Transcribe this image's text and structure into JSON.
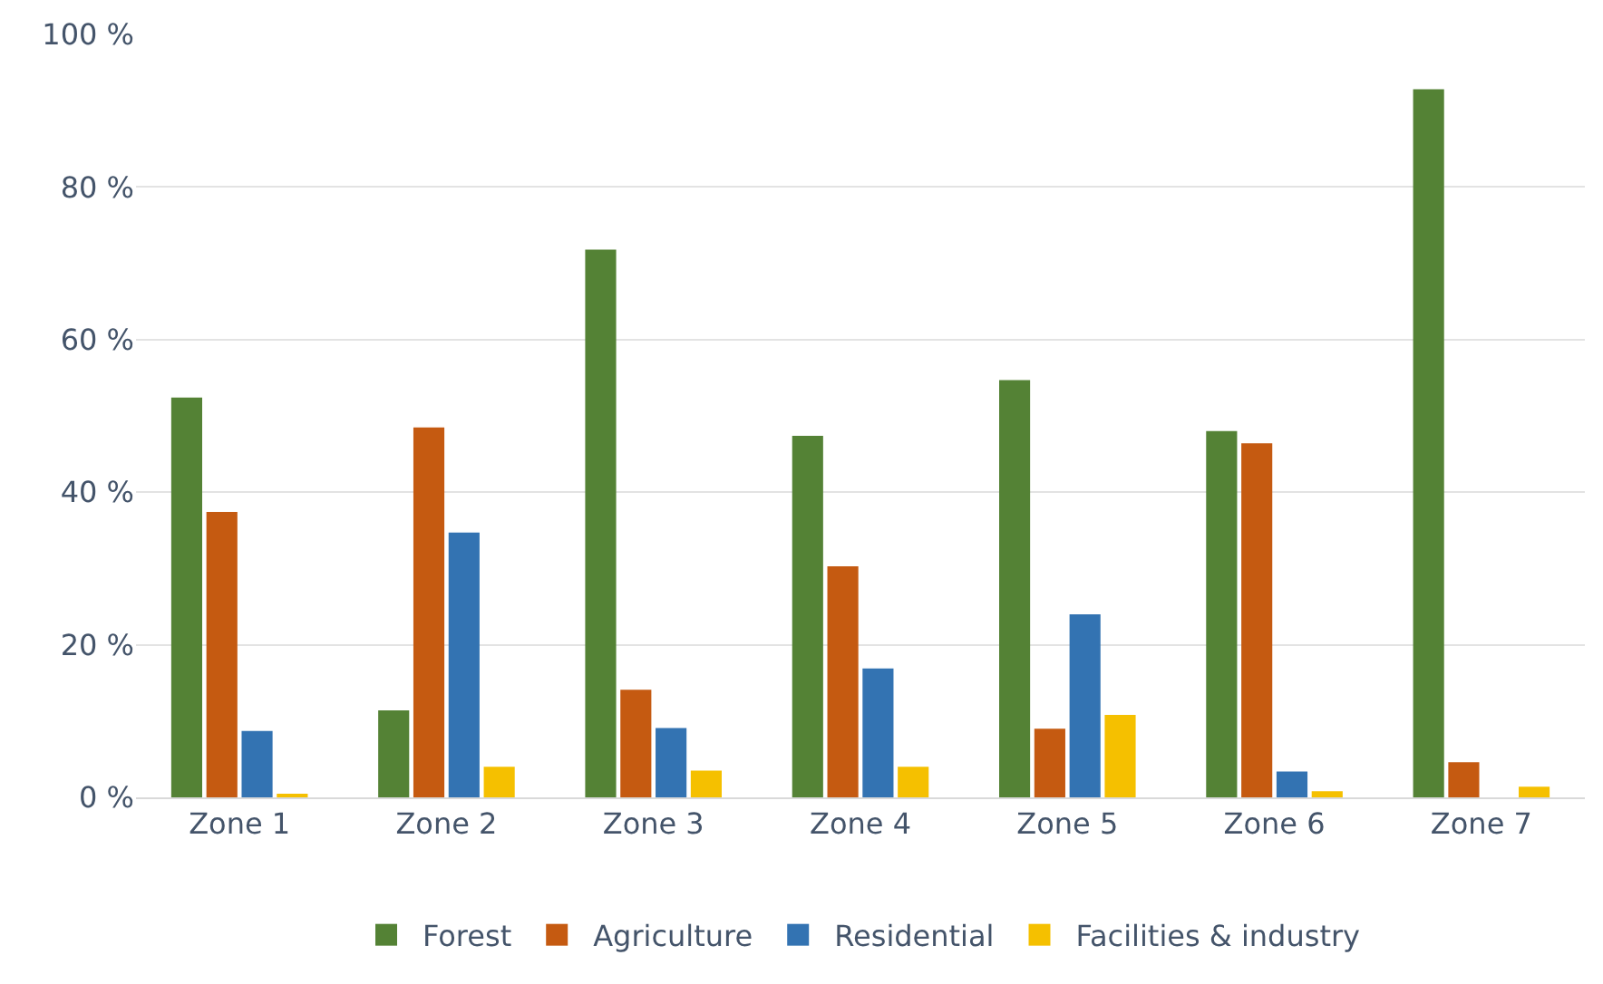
{
  "chart_data": {
    "type": "bar",
    "categories": [
      "Zone 1",
      "Zone 2",
      "Zone 3",
      "Zone 4",
      "Zone 5",
      "Zone 6",
      "Zone 7"
    ],
    "series": [
      {
        "name": "Forest",
        "color": "#548235",
        "values": [
          52.4,
          11.4,
          71.8,
          47.4,
          54.7,
          48.0,
          92.8
        ]
      },
      {
        "name": "Agriculture",
        "color": "#c55a11",
        "values": [
          37.4,
          48.5,
          14.1,
          30.3,
          9.0,
          46.4,
          4.6
        ]
      },
      {
        "name": "Residential",
        "color": "#3373b2",
        "values": [
          8.7,
          34.7,
          9.1,
          16.9,
          24.0,
          3.4,
          0
        ]
      },
      {
        "name": "Facilities & industry",
        "color": "#f5c000",
        "values": [
          0.3,
          4.0,
          3.5,
          4.0,
          10.8,
          0.8,
          1.4
        ]
      }
    ],
    "ylim": [
      0,
      100
    ],
    "yticks": [
      {
        "value": 0,
        "label": "0 %"
      },
      {
        "value": 20,
        "label": "20 %"
      },
      {
        "value": 40,
        "label": "40 %"
      },
      {
        "value": 60,
        "label": "60 %"
      },
      {
        "value": 80,
        "label": "80 %"
      },
      {
        "value": 100,
        "label": "100 %"
      }
    ],
    "grid": "y",
    "legend": "bottom"
  }
}
